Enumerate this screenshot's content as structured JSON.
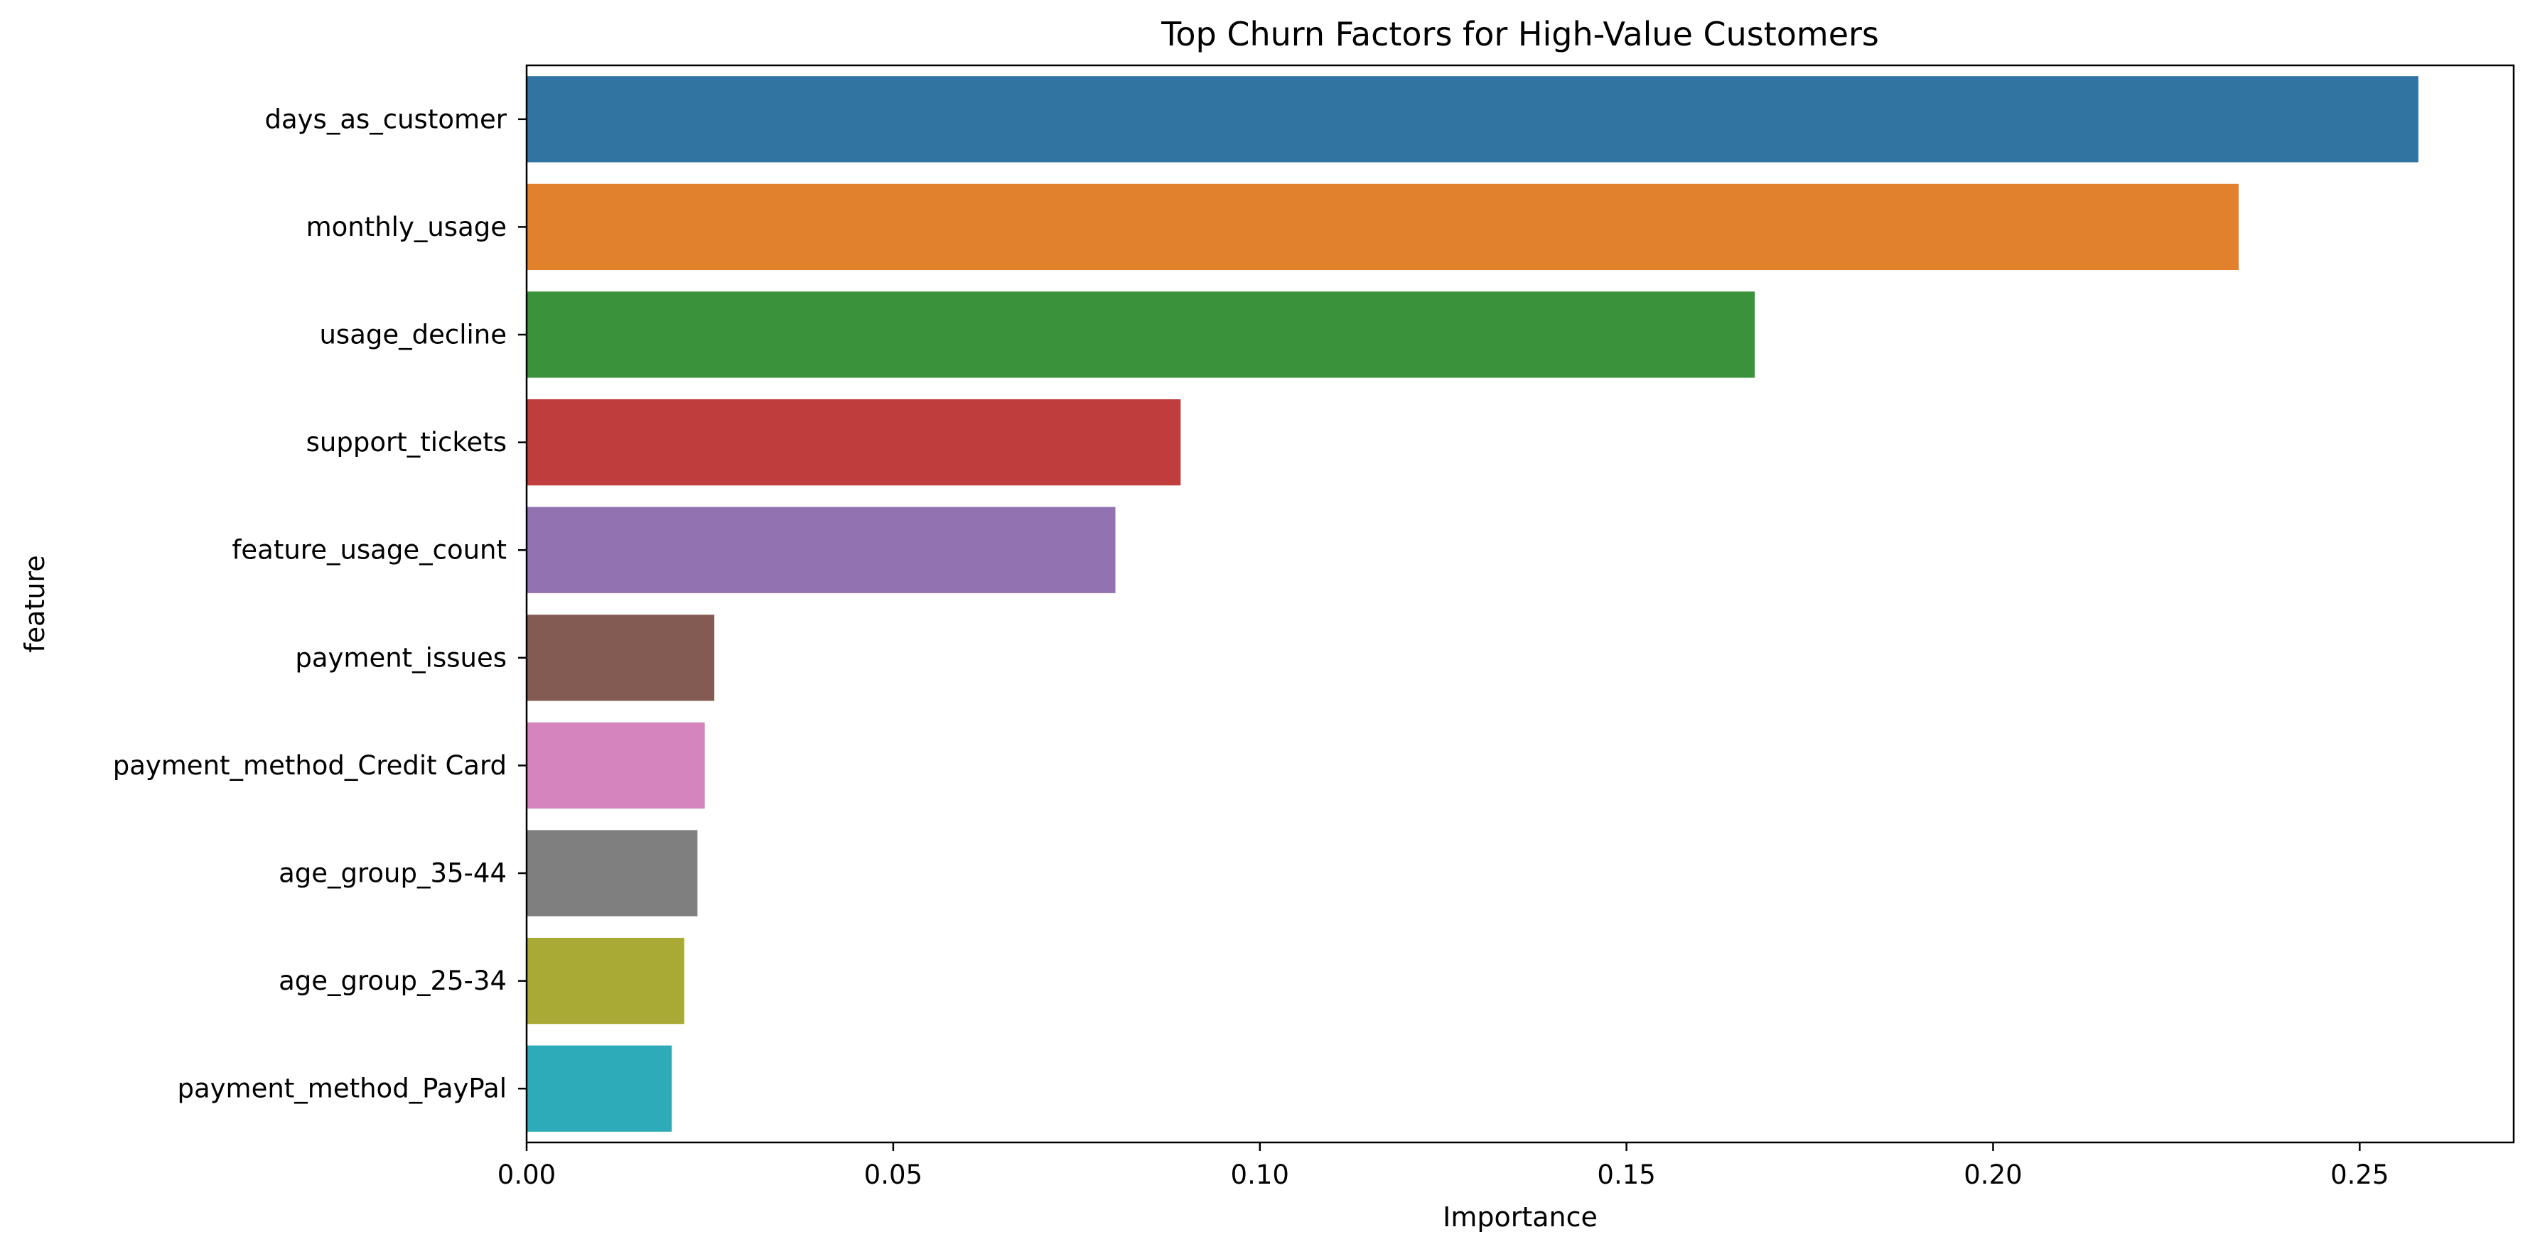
{
  "chart_data": {
    "type": "bar",
    "orientation": "horizontal",
    "title": "Top Churn Factors for High-Value Customers",
    "xlabel": "Importance",
    "ylabel": "feature",
    "categories": [
      "days_as_customer",
      "monthly_usage",
      "usage_decline",
      "support_tickets",
      "feature_usage_count",
      "payment_issues",
      "payment_method_Credit Card",
      "age_group_35-44",
      "age_group_25-34",
      "payment_method_PayPal"
    ],
    "values": [
      0.258,
      0.2335,
      0.1675,
      0.0892,
      0.0803,
      0.0256,
      0.0243,
      0.0233,
      0.0215,
      0.0198
    ],
    "colors": [
      "#3274a1",
      "#e1812c",
      "#3a923a",
      "#c03d3e",
      "#9372b2",
      "#845b53",
      "#d684bd",
      "#7f7f7f",
      "#a9aa35",
      "#2eabb8"
    ],
    "xlim": [
      0,
      0.271
    ],
    "xticks": [
      {
        "value": 0.0,
        "label": "0.00"
      },
      {
        "value": 0.05,
        "label": "0.05"
      },
      {
        "value": 0.1,
        "label": "0.10"
      },
      {
        "value": 0.15,
        "label": "0.15"
      },
      {
        "value": 0.2,
        "label": "0.20"
      },
      {
        "value": 0.25,
        "label": "0.25"
      }
    ],
    "grid": false,
    "legend": "none"
  }
}
